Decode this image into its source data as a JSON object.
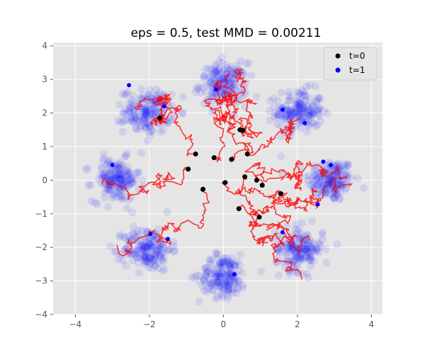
{
  "chart_data": {
    "type": "scatter",
    "title": "eps = 0.5, test MMD = 0.00211",
    "xlabel": "",
    "ylabel": "",
    "xlim": [
      -4.6,
      4.3
    ],
    "ylim": [
      -4.0,
      4.1
    ],
    "xticks": [
      -4,
      -2,
      0,
      2,
      4
    ],
    "yticks": [
      -4,
      -3,
      -2,
      -1,
      0,
      1,
      2,
      3,
      4
    ],
    "grid": true,
    "legend_position": "top-right",
    "background_color": "#e5e5e5",
    "grid_color": "#ffffff",
    "clusters": {
      "description_of_points": "blue translucent target samples around 8 centers on a circle of radius ~2.9",
      "centers": [
        [
          2.9,
          0.0
        ],
        [
          2.05,
          2.05
        ],
        [
          0.0,
          2.85
        ],
        [
          -2.05,
          2.05
        ],
        [
          -2.9,
          0.0
        ],
        [
          -2.05,
          -2.05
        ],
        [
          0.0,
          -2.85
        ],
        [
          2.05,
          -2.05
        ]
      ],
      "std": 0.32,
      "points_per_cluster": 170,
      "color": "#0000ff",
      "opacity": 0.09
    },
    "trajectories_color": "#ff0000",
    "series": [
      {
        "name": "t=0",
        "color": "#000000",
        "points": [
          [
            -0.25,
            0.67
          ],
          [
            0.53,
            1.48
          ],
          [
            -0.75,
            0.78
          ],
          [
            -0.95,
            0.33
          ],
          [
            -0.55,
            -0.27
          ],
          [
            0.05,
            -0.07
          ],
          [
            0.22,
            0.62
          ],
          [
            0.58,
            0.1
          ],
          [
            0.42,
            -0.85
          ],
          [
            0.97,
            -1.1
          ],
          [
            1.55,
            -0.4
          ],
          [
            0.9,
            0.0
          ],
          [
            1.05,
            -0.15
          ],
          [
            0.65,
            0.78
          ],
          [
            -1.72,
            1.85
          ],
          [
            0.45,
            1.5
          ]
        ]
      },
      {
        "name": "t=1",
        "color": "#0000ff",
        "points": [
          [
            -2.55,
            2.83
          ],
          [
            -1.6,
            2.2
          ],
          [
            1.6,
            2.1
          ],
          [
            2.2,
            1.7
          ],
          [
            2.7,
            0.55
          ],
          [
            2.9,
            0.45
          ],
          [
            2.55,
            -0.72
          ],
          [
            1.6,
            -1.55
          ],
          [
            -1.97,
            -1.6
          ],
          [
            -1.5,
            -1.75
          ],
          [
            -3.0,
            0.45
          ],
          [
            0.3,
            -2.8
          ],
          [
            -0.2,
            2.7
          ]
        ]
      }
    ]
  },
  "legend": {
    "items": [
      {
        "label": "t=0",
        "color": "#000000"
      },
      {
        "label": "t=1",
        "color": "#0000ff"
      }
    ]
  }
}
